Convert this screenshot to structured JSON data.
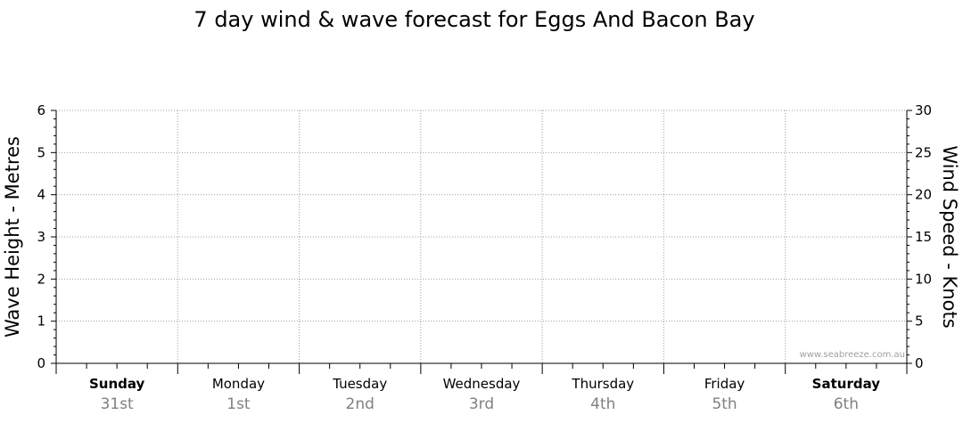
{
  "chart_data": {
    "type": "line",
    "title": "7 day wind & wave forecast for Eggs And Bacon Bay",
    "ylabel_left": "Wave Height - Metres",
    "ylabel_right": "Wind Speed - Knots",
    "ylim_left": [
      0,
      6
    ],
    "ylim_right": [
      0,
      30
    ],
    "yticks_left": [
      "0",
      "1",
      "2",
      "3",
      "4",
      "5",
      "6"
    ],
    "yticks_right": [
      "0",
      "5",
      "10",
      "15",
      "20",
      "25",
      "30"
    ],
    "grid": true,
    "days": [
      {
        "day": "Sunday",
        "date": "31st",
        "bold": true
      },
      {
        "day": "Monday",
        "date": "1st",
        "bold": false
      },
      {
        "day": "Tuesday",
        "date": "2nd",
        "bold": false
      },
      {
        "day": "Wednesday",
        "date": "3rd",
        "bold": false
      },
      {
        "day": "Thursday",
        "date": "4th",
        "bold": false
      },
      {
        "day": "Friday",
        "date": "5th",
        "bold": false
      },
      {
        "day": "Saturday",
        "date": "6th",
        "bold": true
      }
    ],
    "series": [],
    "watermark": "www.seabreeze.com.au"
  },
  "colors": {
    "grid": "#a0a0a0",
    "axis": "#000000",
    "date_text": "#808080"
  }
}
